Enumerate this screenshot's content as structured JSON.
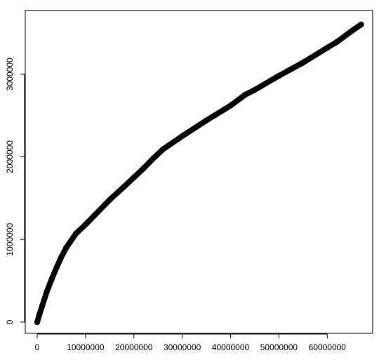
{
  "chart_data": {
    "type": "line",
    "title": "",
    "xlabel": "",
    "ylabel": "",
    "xlim": [
      0,
      67000000
    ],
    "ylim": [
      0,
      3600000
    ],
    "x_ticks": [
      0,
      10000000,
      20000000,
      30000000,
      40000000,
      50000000,
      60000000
    ],
    "x_tick_labels": [
      "0",
      "10000000",
      "20000000",
      "30000000",
      "40000000",
      "50000000",
      "60000000"
    ],
    "y_ticks": [
      0,
      1000000,
      2000000,
      3000000
    ],
    "y_tick_labels": [
      "0",
      "1000000",
      "2000000",
      "3000000"
    ],
    "grid": false,
    "legend": "none",
    "series": [
      {
        "color": "#000000",
        "x": [
          0,
          500000,
          1000000,
          2000000,
          3000000,
          4000000,
          5000000,
          6000000,
          8000000,
          10000000,
          12000000,
          15000000,
          18000000,
          20000000,
          22000000,
          24000000,
          26000000,
          30000000,
          35000000,
          40000000,
          43000000,
          45000000,
          50000000,
          55000000,
          60000000,
          62000000,
          65000000,
          67000000
        ],
        "y": [
          0,
          100000,
          190000,
          370000,
          520000,
          660000,
          790000,
          900000,
          1070000,
          1180000,
          1300000,
          1480000,
          1640000,
          1750000,
          1860000,
          1980000,
          2090000,
          2250000,
          2440000,
          2620000,
          2750000,
          2810000,
          2980000,
          3140000,
          3320000,
          3390000,
          3520000,
          3600000
        ]
      }
    ]
  }
}
